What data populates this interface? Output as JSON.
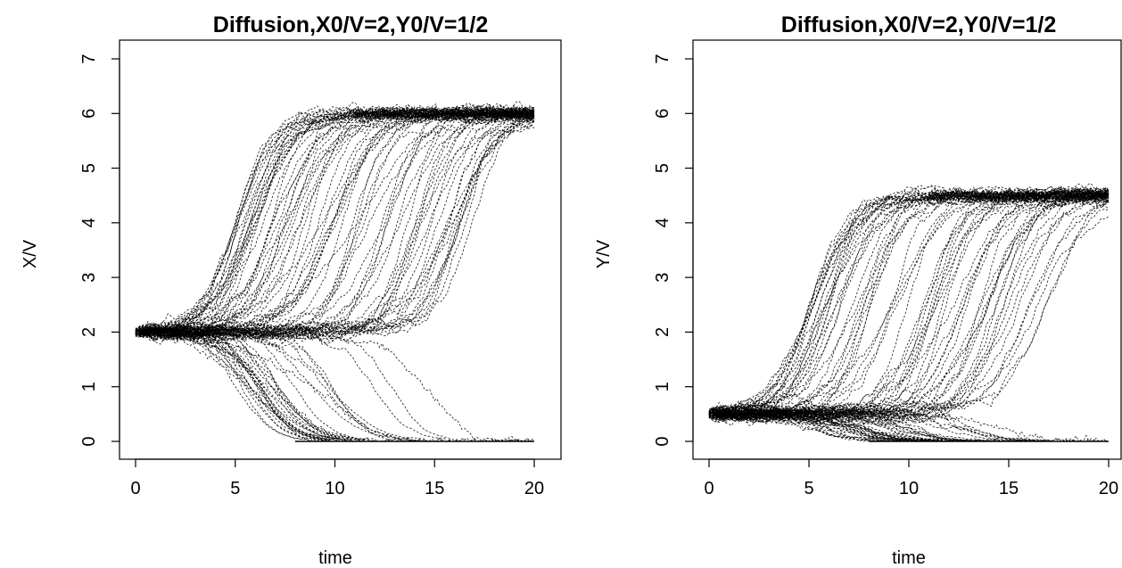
{
  "chart_data": [
    {
      "id": "left",
      "type": "line",
      "title": "Diffusion,X0/V=2,Y0/V=1/2",
      "xlabel": "time",
      "ylabel": "X/V",
      "xlim": [
        0,
        20
      ],
      "ylim": [
        0,
        7
      ],
      "xticks": [
        0,
        5,
        10,
        15,
        20
      ],
      "yticks": [
        0,
        1,
        2,
        3,
        4,
        5,
        6,
        7
      ],
      "grid": false,
      "legend": "none",
      "line_style": "dashed",
      "line_color": "#000000",
      "initial_value": 2,
      "upper_plateau": 6,
      "lower_plateau": 0,
      "series_count": 100,
      "series": [
        {
          "x": [
            0,
            2,
            4,
            6,
            7,
            8,
            9,
            10,
            12,
            15,
            20
          ],
          "values": [
            2.0,
            2.05,
            2.4,
            3.6,
            4.6,
            5.3,
            5.7,
            5.9,
            6.0,
            6.0,
            6.0
          ]
        },
        {
          "x": [
            0,
            2,
            4,
            6,
            7,
            8,
            9,
            10,
            12,
            15,
            20
          ],
          "values": [
            2.0,
            2.1,
            2.5,
            3.9,
            4.9,
            5.5,
            5.85,
            5.95,
            6.0,
            6.0,
            6.0
          ]
        },
        {
          "x": [
            0,
            2,
            4,
            6,
            8,
            9,
            10,
            11,
            12,
            15,
            20
          ],
          "values": [
            2.0,
            2.0,
            2.2,
            3.0,
            4.3,
            5.0,
            5.5,
            5.8,
            5.95,
            6.0,
            6.0
          ]
        },
        {
          "x": [
            0,
            2,
            4,
            6,
            8,
            10,
            11,
            12,
            13,
            15,
            20
          ],
          "values": [
            2.0,
            2.0,
            2.1,
            2.5,
            3.2,
            4.4,
            5.0,
            5.5,
            5.8,
            6.0,
            6.0
          ]
        },
        {
          "x": [
            0,
            2,
            4,
            6,
            8,
            10,
            12,
            13,
            14,
            16,
            20
          ],
          "values": [
            2.0,
            2.0,
            2.1,
            2.2,
            2.6,
            3.4,
            4.5,
            5.1,
            5.5,
            5.95,
            6.0
          ]
        },
        {
          "x": [
            0,
            3,
            6,
            8,
            10,
            12,
            14,
            15,
            16,
            18,
            20
          ],
          "values": [
            2.0,
            2.0,
            2.0,
            1.95,
            1.9,
            2.2,
            2.8,
            3.5,
            4.3,
            5.5,
            5.95
          ]
        },
        {
          "x": [
            0,
            2,
            4,
            6,
            7,
            8,
            9,
            12,
            15,
            20
          ],
          "values": [
            2.0,
            1.9,
            1.5,
            0.9,
            0.5,
            0.15,
            0.0,
            0.0,
            0.0,
            0.0
          ]
        },
        {
          "x": [
            0,
            2,
            4,
            6,
            8,
            9,
            10,
            12,
            15,
            20
          ],
          "values": [
            2.0,
            1.95,
            1.7,
            1.2,
            0.6,
            0.3,
            0.05,
            0.0,
            0.0,
            0.0
          ]
        },
        {
          "x": [
            0,
            2,
            4,
            6,
            8,
            10,
            11,
            12,
            13,
            15,
            20
          ],
          "values": [
            2.0,
            2.0,
            1.85,
            1.6,
            1.2,
            0.7,
            0.4,
            0.15,
            0.0,
            0.0,
            0.0
          ]
        },
        {
          "x": [
            0,
            3,
            6,
            9,
            12,
            13,
            14,
            15,
            16,
            17,
            20
          ],
          "values": [
            2.0,
            2.0,
            1.95,
            1.9,
            1.8,
            1.6,
            1.2,
            0.8,
            0.4,
            0.05,
            0.0
          ]
        }
      ]
    },
    {
      "id": "right",
      "type": "line",
      "title": "Diffusion,X0/V=2,Y0/V=1/2",
      "xlabel": "time",
      "ylabel": "Y/V",
      "xlim": [
        0,
        20
      ],
      "ylim": [
        0,
        7
      ],
      "xticks": [
        0,
        5,
        10,
        15,
        20
      ],
      "yticks": [
        0,
        1,
        2,
        3,
        4,
        5,
        6,
        7
      ],
      "grid": false,
      "legend": "none",
      "line_style": "dashed",
      "line_color": "#000000",
      "initial_value": 0.5,
      "upper_plateau": 4.5,
      "lower_plateau": 0,
      "series_count": 100,
      "series": [
        {
          "x": [
            0,
            2,
            4,
            6,
            7,
            8,
            9,
            10,
            12,
            15,
            20
          ],
          "values": [
            0.5,
            0.55,
            0.9,
            2.2,
            3.1,
            3.8,
            4.2,
            4.4,
            4.5,
            4.5,
            4.5
          ]
        },
        {
          "x": [
            0,
            2,
            4,
            6,
            8,
            9,
            10,
            11,
            12,
            15,
            20
          ],
          "values": [
            0.5,
            0.5,
            0.7,
            1.5,
            2.9,
            3.6,
            4.1,
            4.35,
            4.45,
            4.5,
            4.5
          ]
        },
        {
          "x": [
            0,
            2,
            4,
            6,
            8,
            10,
            11,
            12,
            13,
            15,
            20
          ],
          "values": [
            0.5,
            0.5,
            0.6,
            0.9,
            1.7,
            3.0,
            3.7,
            4.1,
            4.35,
            4.5,
            4.5
          ]
        },
        {
          "x": [
            0,
            3,
            6,
            8,
            10,
            12,
            13,
            14,
            15,
            17,
            20
          ],
          "values": [
            0.5,
            0.5,
            0.55,
            0.7,
            1.2,
            2.3,
            3.1,
            3.8,
            4.2,
            4.5,
            4.5
          ]
        },
        {
          "x": [
            0,
            3,
            6,
            9,
            11,
            13,
            14,
            15,
            16,
            18,
            20
          ],
          "values": [
            0.5,
            0.5,
            0.5,
            0.5,
            0.8,
            1.8,
            2.6,
            3.4,
            4.0,
            4.45,
            4.5
          ]
        },
        {
          "x": [
            0,
            2,
            4,
            6,
            7,
            8,
            10,
            15,
            20
          ],
          "values": [
            0.5,
            0.45,
            0.3,
            0.15,
            0.06,
            0.0,
            0.0,
            0.0,
            0.0
          ]
        },
        {
          "x": [
            0,
            2,
            4,
            6,
            8,
            9,
            10,
            12,
            15,
            20
          ],
          "values": [
            0.5,
            0.5,
            0.4,
            0.25,
            0.12,
            0.05,
            0.0,
            0.0,
            0.0,
            0.0
          ]
        },
        {
          "x": [
            0,
            3,
            6,
            9,
            11,
            12,
            13,
            15,
            17,
            20
          ],
          "values": [
            0.5,
            0.5,
            0.5,
            0.45,
            0.4,
            0.45,
            0.4,
            0.2,
            0.0,
            0.0
          ]
        }
      ]
    }
  ]
}
